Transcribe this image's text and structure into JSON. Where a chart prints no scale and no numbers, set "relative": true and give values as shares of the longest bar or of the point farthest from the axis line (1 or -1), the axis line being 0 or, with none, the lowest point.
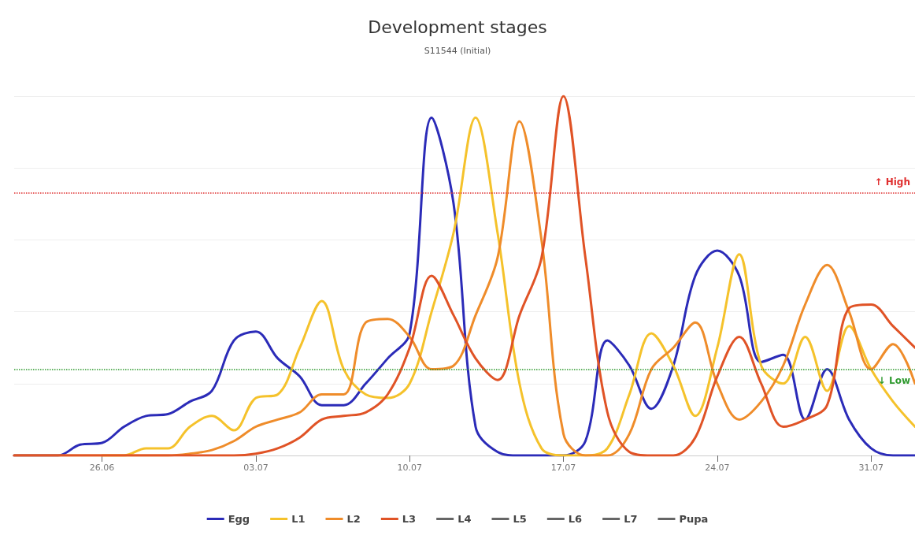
{
  "chart_data": {
    "type": "line",
    "title": "Development stages",
    "subtitle": "S11544 (Initial)",
    "relative": true,
    "grid": "y",
    "legend": "bottom",
    "marker": "none",
    "line_style": "solid",
    "x": [
      "--06-22",
      "--06-23",
      "--06-24",
      "--06-25",
      "--06-26",
      "--06-27",
      "--06-28",
      "--06-29",
      "--06-30",
      "--07-01",
      "--07-02",
      "--07-03",
      "--07-04",
      "--07-05",
      "--07-06",
      "--07-07",
      "--07-08",
      "--07-09",
      "--07-10",
      "--07-11",
      "--07-12",
      "--07-13",
      "--07-14",
      "--07-15",
      "--07-16",
      "--07-17",
      "--07-18",
      "--07-19",
      "--07-20",
      "--07-21",
      "--07-22",
      "--07-23",
      "--07-24",
      "--07-25",
      "--07-26",
      "--07-27",
      "--07-28",
      "--07-29",
      "--07-30",
      "--07-31",
      "--08-01",
      "--08-02"
    ],
    "xlim": [
      "--06-22",
      "--08-02"
    ],
    "xticks": [
      {
        "value": "--06-26",
        "label": "26.06"
      },
      {
        "value": "--07-03",
        "label": "03.07"
      },
      {
        "value": "--07-10",
        "label": "10.07"
      },
      {
        "value": "--07-17",
        "label": "17.07"
      },
      {
        "value": "--07-24",
        "label": "24.07"
      },
      {
        "value": "--07-31",
        "label": "31.07"
      }
    ],
    "series": [
      {
        "name": "Egg",
        "color": "#2b2bb8",
        "values": [
          0,
          0,
          0,
          0.03,
          0.035,
          0.08,
          0.11,
          0.115,
          0.15,
          0.18,
          0.32,
          0.345,
          0.27,
          0.22,
          0.14,
          0.14,
          0.2,
          0.27,
          0.34,
          0.94,
          0.7,
          0.08,
          0.01,
          0,
          0,
          0,
          0.04,
          0.32,
          0.25,
          0.13,
          0.25,
          0.5,
          0.57,
          0.5,
          0.26,
          0.28,
          0.1,
          0.24,
          0.1,
          0.02,
          0,
          0
        ]
      },
      {
        "name": "L1",
        "color": "#f5c22b",
        "values": [
          null,
          null,
          null,
          null,
          0,
          0,
          0.02,
          0.02,
          0.08,
          0.11,
          0.07,
          0.16,
          0.17,
          0.3,
          0.43,
          0.24,
          0.17,
          0.16,
          0.2,
          0.4,
          0.62,
          0.94,
          0.62,
          0.2,
          0.02,
          0,
          0,
          0.02,
          0.17,
          0.34,
          0.25,
          0.11,
          0.3,
          0.56,
          0.25,
          0.2,
          0.33,
          0.18,
          0.36,
          0.24,
          0.15,
          0.08
        ]
      },
      {
        "name": "L2",
        "color": "#ef8c2a",
        "values": [
          0,
          0,
          0,
          0,
          0,
          0,
          0,
          0,
          0.005,
          0.015,
          0.04,
          0.08,
          0.1,
          0.12,
          0.17,
          0.17,
          0.37,
          0.38,
          0.33,
          0.24,
          0.25,
          0.39,
          0.55,
          0.93,
          0.6,
          0.06,
          0,
          0,
          0.06,
          0.24,
          0.3,
          0.37,
          0.2,
          0.1,
          0.15,
          0.25,
          0.42,
          0.53,
          0.4,
          0.24,
          0.31,
          0.2
        ]
      },
      {
        "name": "L3",
        "color": "#e05326",
        "values": [
          0,
          0,
          0,
          0,
          0,
          0,
          0,
          0,
          0,
          0,
          0,
          0.005,
          0.02,
          0.05,
          0.1,
          0.11,
          0.12,
          0.17,
          0.3,
          0.5,
          0.39,
          0.27,
          0.21,
          0.39,
          0.55,
          1.0,
          0.55,
          0.12,
          0.01,
          0,
          0,
          0.05,
          0.22,
          0.33,
          0.2,
          0.08,
          0.1,
          0.14,
          0.41,
          0.42,
          0.36,
          0.3
        ]
      },
      {
        "name": "L4",
        "color": "#666666",
        "values": [
          null,
          null,
          null,
          null,
          null,
          null,
          null,
          null,
          null,
          null,
          null,
          null,
          null,
          null,
          null,
          null,
          null,
          null,
          null,
          null,
          null,
          null,
          null,
          null,
          null,
          null,
          null,
          null,
          null,
          null,
          null,
          null,
          null,
          null,
          null,
          null,
          null,
          null,
          null,
          null,
          null,
          null
        ]
      },
      {
        "name": "L5",
        "color": "#666666",
        "values": [
          null,
          null,
          null,
          null,
          null,
          null,
          null,
          null,
          null,
          null,
          null,
          null,
          null,
          null,
          null,
          null,
          null,
          null,
          null,
          null,
          null,
          null,
          null,
          null,
          null,
          null,
          null,
          null,
          null,
          null,
          null,
          null,
          null,
          null,
          null,
          null,
          null,
          null,
          null,
          null,
          null,
          null
        ]
      },
      {
        "name": "L6",
        "color": "#666666",
        "values": [
          null,
          null,
          null,
          null,
          null,
          null,
          null,
          null,
          null,
          null,
          null,
          null,
          null,
          null,
          null,
          null,
          null,
          null,
          null,
          null,
          null,
          null,
          null,
          null,
          null,
          null,
          null,
          null,
          null,
          null,
          null,
          null,
          null,
          null,
          null,
          null,
          null,
          null,
          null,
          null,
          null,
          null
        ]
      },
      {
        "name": "L7",
        "color": "#666666",
        "values": [
          null,
          null,
          null,
          null,
          null,
          null,
          null,
          null,
          null,
          null,
          null,
          null,
          null,
          null,
          null,
          null,
          null,
          null,
          null,
          null,
          null,
          null,
          null,
          null,
          null,
          null,
          null,
          null,
          null,
          null,
          null,
          null,
          null,
          null,
          null,
          null,
          null,
          null,
          null,
          null,
          null,
          null
        ]
      },
      {
        "name": "Pupa",
        "color": "#666666",
        "values": [
          null,
          null,
          null,
          null,
          null,
          null,
          null,
          null,
          null,
          null,
          null,
          null,
          null,
          null,
          null,
          null,
          null,
          null,
          null,
          null,
          null,
          null,
          null,
          null,
          null,
          null,
          null,
          null,
          null,
          null,
          null,
          null,
          null,
          null,
          null,
          null,
          null,
          null,
          null,
          null,
          null,
          null
        ]
      }
    ],
    "ref_lines": [
      {
        "axis": "y",
        "value": 0.73,
        "label": "↑ High",
        "color": "#e03030",
        "line_style": "dotted"
      },
      {
        "axis": "y",
        "value": 0.24,
        "label": "↓ Low",
        "color": "#2f9a2f",
        "line_style": "dotted"
      }
    ]
  }
}
